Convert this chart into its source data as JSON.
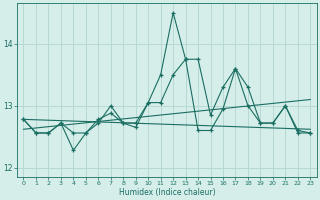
{
  "title": "",
  "xlabel": "Humidex (Indice chaleur)",
  "bg_color": "#d6eeea",
  "grid_color": "#b8d8d4",
  "line_color": "#1a6e62",
  "xlim": [
    -0.5,
    23.5
  ],
  "ylim": [
    11.85,
    14.65
  ],
  "yticks": [
    12,
    13,
    14
  ],
  "xticks": [
    0,
    1,
    2,
    3,
    4,
    5,
    6,
    7,
    8,
    9,
    10,
    11,
    12,
    13,
    14,
    15,
    16,
    17,
    18,
    19,
    20,
    21,
    22,
    23
  ],
  "series1_x": [
    0,
    1,
    2,
    3,
    4,
    5,
    6,
    7,
    8,
    9,
    10,
    11,
    12,
    13,
    14,
    15,
    16,
    17,
    18,
    19,
    20,
    21,
    22,
    23
  ],
  "series1_y": [
    12.78,
    12.56,
    12.56,
    12.72,
    12.28,
    12.56,
    12.72,
    13.0,
    12.72,
    12.72,
    13.05,
    13.5,
    14.5,
    13.75,
    13.75,
    12.85,
    13.3,
    13.6,
    13.3,
    12.72,
    12.72,
    13.0,
    12.6,
    12.56
  ],
  "series2_x": [
    0,
    1,
    2,
    3,
    4,
    5,
    6,
    7,
    8,
    9,
    10,
    11,
    12,
    13,
    14,
    15,
    16,
    17,
    18,
    19,
    20,
    21,
    22,
    23
  ],
  "series2_y": [
    12.78,
    12.56,
    12.56,
    12.72,
    12.56,
    12.56,
    12.78,
    12.88,
    12.72,
    12.65,
    13.05,
    13.05,
    13.5,
    13.75,
    12.6,
    12.6,
    12.95,
    13.6,
    13.0,
    12.72,
    12.72,
    13.0,
    12.56,
    12.56
  ],
  "trend1_x": [
    0,
    23
  ],
  "trend1_y": [
    12.62,
    13.1
  ],
  "trend2_x": [
    0,
    23
  ],
  "trend2_y": [
    12.78,
    12.62
  ],
  "linewidth": 0.8,
  "marker_size": 3.0
}
